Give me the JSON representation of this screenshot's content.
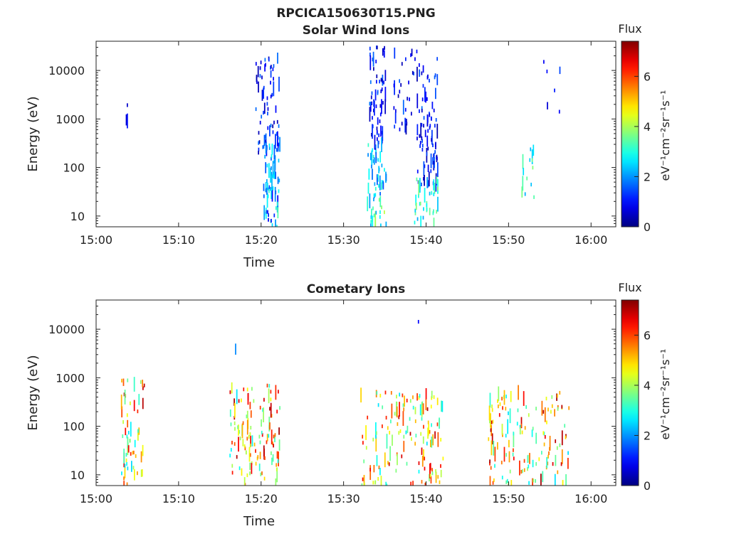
{
  "figure_title": "RPCICA150630T15.PNG",
  "chart_data": [
    {
      "type": "heatmap",
      "title": "Solar Wind Ions",
      "xlabel": "Time",
      "ylabel": "Energy (eV)",
      "x_ticks": [
        "15:00",
        "15:10",
        "15:20",
        "15:30",
        "15:40",
        "15:50",
        "16:00"
      ],
      "x_range_minutes": [
        0,
        63
      ],
      "y_ticks": [
        {
          "value": 10,
          "label": "10"
        },
        {
          "value": 100,
          "label": "100"
        },
        {
          "value": 1000,
          "label": "1000"
        },
        {
          "value": 10000,
          "label": "10000"
        }
      ],
      "y_scale": "log",
      "y_range": [
        6,
        40000
      ],
      "colorbar": {
        "label": "Flux",
        "unit_label": "eV⁻¹cm⁻²sr⁻¹s⁻¹",
        "range": [
          0,
          7.4
        ],
        "ticks": [
          {
            "value": 0,
            "label": "0"
          },
          {
            "value": 2,
            "label": "2"
          },
          {
            "value": 4,
            "label": "4"
          },
          {
            "value": 6,
            "label": "6"
          }
        ]
      },
      "clusters": [
        {
          "t": [
            3.5,
            3.8
          ],
          "e": [
            700,
            2500
          ],
          "f": [
            0.5,
            1.2
          ],
          "n": 3
        },
        {
          "t": [
            19.3,
            22.1
          ],
          "e": [
            200,
            18000
          ],
          "f": [
            0.3,
            1.8
          ],
          "n": 70
        },
        {
          "t": [
            20.2,
            22.2
          ],
          "e": [
            25,
            300
          ],
          "f": [
            1.5,
            3.0
          ],
          "n": 40
        },
        {
          "t": [
            20.3,
            22.1
          ],
          "e": [
            6,
            40
          ],
          "f": [
            0.8,
            3.5
          ],
          "n": 30
        },
        {
          "t": [
            33.0,
            35.0
          ],
          "e": [
            250,
            30000
          ],
          "f": [
            0.3,
            1.8
          ],
          "n": 65
        },
        {
          "t": [
            32.9,
            35.1
          ],
          "e": [
            25,
            300
          ],
          "f": [
            1.5,
            3.2
          ],
          "n": 40
        },
        {
          "t": [
            32.8,
            35.1
          ],
          "e": [
            6,
            40
          ],
          "f": [
            2.0,
            4.2
          ],
          "n": 25
        },
        {
          "t": [
            36.0,
            41.5
          ],
          "e": [
            600,
            25000
          ],
          "f": [
            0.3,
            1.8
          ],
          "n": 60
        },
        {
          "t": [
            38.8,
            41.5
          ],
          "e": [
            40,
            1500
          ],
          "f": [
            0.3,
            1.6
          ],
          "n": 60
        },
        {
          "t": [
            38.5,
            41.5
          ],
          "e": [
            6,
            60
          ],
          "f": [
            2.0,
            3.8
          ],
          "n": 35
        },
        {
          "t": [
            51.5,
            53.2
          ],
          "e": [
            20,
            300
          ],
          "f": [
            2.0,
            3.8
          ],
          "n": 14
        },
        {
          "t": [
            53.5,
            56.2
          ],
          "e": [
            1000,
            25000
          ],
          "f": [
            0.5,
            1.5
          ],
          "n": 6
        }
      ]
    },
    {
      "type": "heatmap",
      "title": "Cometary Ions",
      "xlabel": "Time",
      "ylabel": "Energy (eV)",
      "x_ticks": [
        "15:00",
        "15:10",
        "15:20",
        "15:30",
        "15:40",
        "15:50",
        "16:00"
      ],
      "x_range_minutes": [
        0,
        63
      ],
      "y_ticks": [
        {
          "value": 10,
          "label": "10"
        },
        {
          "value": 100,
          "label": "100"
        },
        {
          "value": 1000,
          "label": "1000"
        },
        {
          "value": 10000,
          "label": "10000"
        }
      ],
      "y_scale": "log",
      "y_range": [
        6,
        40000
      ],
      "colorbar": {
        "label": "Flux",
        "unit_label": "eV⁻¹cm⁻²sr⁻¹s⁻¹",
        "range": [
          0,
          7.4
        ],
        "ticks": [
          {
            "value": 0,
            "label": "0"
          },
          {
            "value": 2,
            "label": "2"
          },
          {
            "value": 4,
            "label": "4"
          },
          {
            "value": 6,
            "label": "6"
          }
        ]
      },
      "clusters": [
        {
          "t": [
            3.0,
            5.8
          ],
          "e": [
            6,
            1000
          ],
          "f": [
            2.5,
            7.0
          ],
          "n": 60
        },
        {
          "t": [
            16.0,
            22.2
          ],
          "e": [
            6,
            700
          ],
          "f": [
            2.5,
            7.2
          ],
          "n": 120
        },
        {
          "t": [
            16.5,
            17.0
          ],
          "e": [
            3000,
            4000
          ],
          "f": [
            1.8,
            2.2
          ],
          "n": 1
        },
        {
          "t": [
            32.0,
            42.0
          ],
          "e": [
            6,
            500
          ],
          "f": [
            2.5,
            7.0
          ],
          "n": 150
        },
        {
          "t": [
            38.5,
            39.0
          ],
          "e": [
            14000,
            16000
          ],
          "f": [
            0.9,
            1.1
          ],
          "n": 1
        },
        {
          "t": [
            47.5,
            57.5
          ],
          "e": [
            6,
            500
          ],
          "f": [
            2.5,
            7.2
          ],
          "n": 140
        }
      ]
    }
  ]
}
